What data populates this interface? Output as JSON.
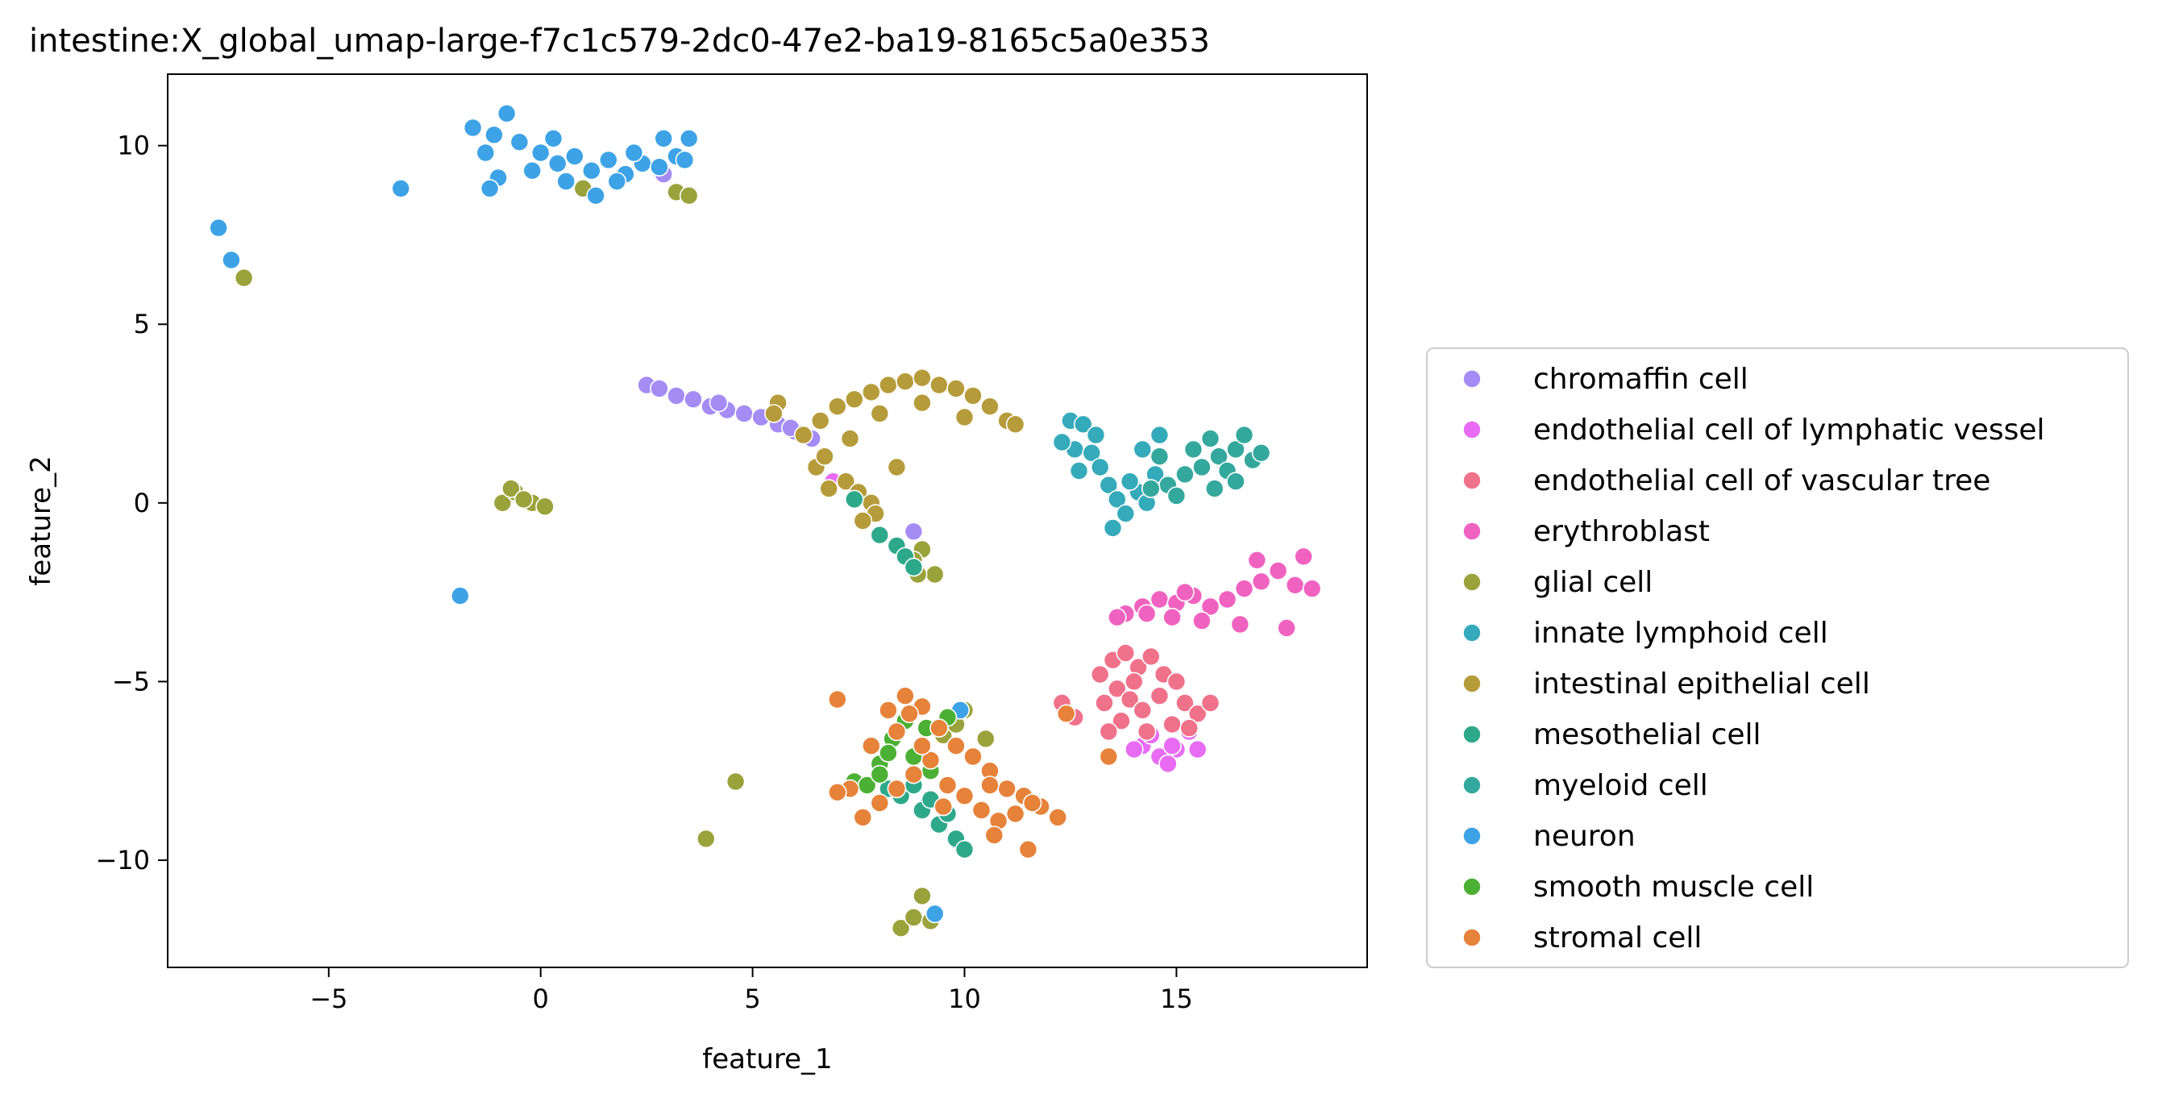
{
  "chart_data": {
    "type": "scatter",
    "title": "intestine:X_global_umap-large-f7c1c579-2dc0-47e2-ba19-8165c5a0e353",
    "xlabel": "feature_1",
    "ylabel": "feature_2",
    "xlim": [
      -8.8,
      19.5
    ],
    "ylim": [
      -13.0,
      12.0
    ],
    "xticks": [
      -5,
      0,
      5,
      10,
      15
    ],
    "xtick_labels": [
      "−5",
      "0",
      "5",
      "10",
      "15"
    ],
    "yticks": [
      -10,
      -5,
      0,
      5,
      10
    ],
    "ytick_labels": [
      "−10",
      "−5",
      "0",
      "5",
      "10"
    ],
    "grid": false,
    "legend_position": "outside-right",
    "series": [
      {
        "name": "chromaffin cell",
        "color": "#a48cf4",
        "points": [
          [
            2.5,
            3.3
          ],
          [
            2.8,
            3.2
          ],
          [
            3.2,
            3.0
          ],
          [
            3.6,
            2.9
          ],
          [
            4.0,
            2.7
          ],
          [
            4.4,
            2.6
          ],
          [
            4.8,
            2.5
          ],
          [
            5.2,
            2.4
          ],
          [
            5.6,
            2.2
          ],
          [
            6.0,
            2.0
          ],
          [
            6.4,
            1.8
          ],
          [
            8.8,
            -0.8
          ],
          [
            2.9,
            9.2
          ],
          [
            5.9,
            2.1
          ],
          [
            4.2,
            2.8
          ]
        ]
      },
      {
        "name": "endothelial cell of lymphatic vessel",
        "color": "#e76cf3",
        "points": [
          [
            14.2,
            -6.8
          ],
          [
            14.6,
            -7.1
          ],
          [
            15.0,
            -6.9
          ],
          [
            14.8,
            -7.3
          ],
          [
            14.4,
            -6.5
          ],
          [
            15.3,
            -6.4
          ],
          [
            14.0,
            -6.9
          ],
          [
            6.9,
            0.6
          ],
          [
            14.9,
            -6.8
          ],
          [
            15.5,
            -6.9
          ]
        ]
      },
      {
        "name": "endothelial cell of vascular tree",
        "color": "#f0718a",
        "points": [
          [
            13.5,
            -4.4
          ],
          [
            13.8,
            -4.2
          ],
          [
            14.1,
            -4.6
          ],
          [
            14.4,
            -4.3
          ],
          [
            14.7,
            -4.8
          ],
          [
            15.0,
            -5.0
          ],
          [
            13.6,
            -5.2
          ],
          [
            13.9,
            -5.5
          ],
          [
            14.2,
            -5.8
          ],
          [
            14.6,
            -5.4
          ],
          [
            15.2,
            -5.6
          ],
          [
            15.5,
            -5.9
          ],
          [
            13.7,
            -6.1
          ],
          [
            14.3,
            -6.4
          ],
          [
            14.9,
            -6.2
          ],
          [
            13.3,
            -5.6
          ],
          [
            12.3,
            -5.6
          ],
          [
            12.6,
            -6.0
          ],
          [
            13.2,
            -4.8
          ],
          [
            15.8,
            -5.6
          ],
          [
            15.3,
            -6.3
          ],
          [
            14.0,
            -5.0
          ],
          [
            13.4,
            -6.4
          ]
        ]
      },
      {
        "name": "erythroblast",
        "color": "#f062c0",
        "points": [
          [
            13.8,
            -3.1
          ],
          [
            14.2,
            -2.9
          ],
          [
            14.6,
            -2.7
          ],
          [
            15.0,
            -2.8
          ],
          [
            15.4,
            -2.6
          ],
          [
            15.8,
            -2.9
          ],
          [
            16.2,
            -2.7
          ],
          [
            16.6,
            -2.4
          ],
          [
            17.0,
            -2.2
          ],
          [
            17.4,
            -1.9
          ],
          [
            17.8,
            -2.3
          ],
          [
            18.2,
            -2.4
          ],
          [
            18.0,
            -1.5
          ],
          [
            17.6,
            -3.5
          ],
          [
            16.9,
            -1.6
          ],
          [
            16.5,
            -3.4
          ],
          [
            15.6,
            -3.3
          ],
          [
            14.9,
            -3.2
          ],
          [
            14.3,
            -3.1
          ],
          [
            13.6,
            -3.2
          ],
          [
            15.2,
            -2.5
          ]
        ]
      },
      {
        "name": "glial cell",
        "color": "#9aa23b",
        "points": [
          [
            -7.0,
            6.3
          ],
          [
            -0.9,
            0.0
          ],
          [
            -0.6,
            0.3
          ],
          [
            -0.7,
            0.4
          ],
          [
            -0.2,
            0.0
          ],
          [
            0.1,
            -0.1
          ],
          [
            -0.4,
            0.1
          ],
          [
            1.0,
            8.8
          ],
          [
            3.2,
            8.7
          ],
          [
            3.5,
            8.6
          ],
          [
            4.6,
            -7.8
          ],
          [
            3.9,
            -9.4
          ],
          [
            9.0,
            -1.3
          ],
          [
            8.8,
            -1.6
          ],
          [
            9.3,
            -2.0
          ],
          [
            8.9,
            -2.0
          ],
          [
            9.0,
            -11.0
          ],
          [
            8.5,
            -11.9
          ],
          [
            8.8,
            -11.6
          ],
          [
            9.2,
            -11.7
          ],
          [
            10.0,
            -5.8
          ],
          [
            9.5,
            -6.5
          ],
          [
            10.5,
            -6.6
          ],
          [
            9.8,
            -6.2
          ]
        ]
      },
      {
        "name": "innate lymphoid cell",
        "color": "#35aabb",
        "points": [
          [
            12.5,
            2.3
          ],
          [
            12.8,
            2.2
          ],
          [
            12.6,
            1.5
          ],
          [
            13.0,
            1.4
          ],
          [
            13.2,
            1.0
          ],
          [
            13.4,
            0.5
          ],
          [
            13.6,
            0.1
          ],
          [
            13.8,
            -0.3
          ],
          [
            14.1,
            0.3
          ],
          [
            14.5,
            0.8
          ],
          [
            14.2,
            1.5
          ],
          [
            14.6,
            1.9
          ],
          [
            12.3,
            1.7
          ],
          [
            13.5,
            -0.7
          ],
          [
            13.9,
            0.6
          ],
          [
            14.3,
            0.0
          ],
          [
            12.7,
            0.9
          ],
          [
            13.1,
            1.9
          ]
        ]
      },
      {
        "name": "intestinal epithelial cell",
        "color": "#b69b3a",
        "points": [
          [
            5.6,
            2.8
          ],
          [
            5.5,
            2.5
          ],
          [
            6.2,
            1.9
          ],
          [
            6.6,
            2.3
          ],
          [
            7.0,
            2.7
          ],
          [
            7.4,
            2.9
          ],
          [
            7.8,
            3.1
          ],
          [
            8.2,
            3.3
          ],
          [
            8.6,
            3.4
          ],
          [
            9.0,
            3.5
          ],
          [
            9.4,
            3.3
          ],
          [
            9.8,
            3.2
          ],
          [
            10.2,
            3.0
          ],
          [
            10.6,
            2.7
          ],
          [
            11.0,
            2.3
          ],
          [
            11.2,
            2.2
          ],
          [
            6.5,
            1.0
          ],
          [
            6.7,
            1.3
          ],
          [
            7.2,
            0.6
          ],
          [
            7.5,
            0.3
          ],
          [
            7.8,
            0.0
          ],
          [
            7.9,
            -0.3
          ],
          [
            7.6,
            -0.5
          ],
          [
            8.4,
            1.0
          ],
          [
            7.3,
            1.8
          ],
          [
            8.0,
            2.5
          ],
          [
            9.0,
            2.8
          ],
          [
            10.0,
            2.4
          ],
          [
            6.8,
            0.4
          ]
        ]
      },
      {
        "name": "mesothelial cell",
        "color": "#2ea88a",
        "points": [
          [
            7.4,
            0.1
          ],
          [
            8.0,
            -0.9
          ],
          [
            8.4,
            -1.2
          ],
          [
            8.6,
            -1.5
          ],
          [
            8.8,
            -1.8
          ],
          [
            8.5,
            -8.2
          ],
          [
            9.0,
            -8.6
          ],
          [
            9.4,
            -9.0
          ],
          [
            9.8,
            -9.4
          ],
          [
            10.0,
            -9.7
          ],
          [
            9.2,
            -8.3
          ],
          [
            8.8,
            -7.9
          ],
          [
            9.6,
            -8.7
          ],
          [
            8.2,
            -8.0
          ]
        ]
      },
      {
        "name": "myeloid cell",
        "color": "#35a89e",
        "points": [
          [
            14.8,
            0.5
          ],
          [
            15.2,
            0.8
          ],
          [
            15.6,
            1.0
          ],
          [
            16.0,
            1.3
          ],
          [
            16.4,
            1.5
          ],
          [
            16.8,
            1.2
          ],
          [
            17.0,
            1.4
          ],
          [
            15.4,
            1.5
          ],
          [
            15.8,
            1.8
          ],
          [
            16.2,
            0.9
          ],
          [
            14.6,
            1.3
          ],
          [
            15.0,
            0.2
          ],
          [
            15.9,
            0.4
          ],
          [
            16.6,
            1.9
          ],
          [
            14.4,
            0.4
          ],
          [
            16.4,
            0.6
          ]
        ]
      },
      {
        "name": "neuron",
        "color": "#3da2e6",
        "points": [
          [
            -7.6,
            7.7
          ],
          [
            -7.3,
            6.8
          ],
          [
            -3.3,
            8.8
          ],
          [
            -1.9,
            -2.6
          ],
          [
            -1.6,
            10.5
          ],
          [
            -1.1,
            10.3
          ],
          [
            -0.8,
            10.9
          ],
          [
            -1.3,
            9.8
          ],
          [
            -1.0,
            9.1
          ],
          [
            -0.5,
            10.1
          ],
          [
            0.0,
            9.8
          ],
          [
            0.4,
            9.5
          ],
          [
            0.8,
            9.7
          ],
          [
            1.2,
            9.3
          ],
          [
            1.6,
            9.6
          ],
          [
            2.0,
            9.2
          ],
          [
            2.4,
            9.5
          ],
          [
            2.8,
            9.4
          ],
          [
            3.2,
            9.7
          ],
          [
            3.5,
            10.2
          ],
          [
            1.3,
            8.6
          ],
          [
            0.3,
            10.2
          ],
          [
            2.9,
            10.2
          ],
          [
            -0.2,
            9.3
          ],
          [
            0.6,
            9.0
          ],
          [
            3.4,
            9.6
          ],
          [
            -1.2,
            8.8
          ],
          [
            9.9,
            -5.8
          ],
          [
            9.3,
            -11.5
          ],
          [
            2.2,
            9.8
          ],
          [
            1.8,
            9.0
          ]
        ]
      },
      {
        "name": "smooth muscle cell",
        "color": "#4cb035",
        "points": [
          [
            7.4,
            -7.8
          ],
          [
            7.7,
            -7.9
          ],
          [
            8.0,
            -7.3
          ],
          [
            8.3,
            -6.6
          ],
          [
            8.8,
            -7.1
          ],
          [
            9.2,
            -7.5
          ],
          [
            9.6,
            -6.0
          ],
          [
            8.6,
            -6.1
          ],
          [
            9.1,
            -6.3
          ],
          [
            8.2,
            -7.0
          ],
          [
            8.0,
            -7.6
          ]
        ]
      },
      {
        "name": "stromal cell",
        "color": "#e6823a",
        "points": [
          [
            7.0,
            -5.5
          ],
          [
            7.8,
            -6.8
          ],
          [
            8.2,
            -5.8
          ],
          [
            8.6,
            -5.4
          ],
          [
            9.0,
            -5.7
          ],
          [
            9.4,
            -6.3
          ],
          [
            9.8,
            -6.8
          ],
          [
            10.2,
            -7.1
          ],
          [
            10.6,
            -7.5
          ],
          [
            11.0,
            -8.0
          ],
          [
            11.4,
            -8.2
          ],
          [
            11.8,
            -8.5
          ],
          [
            12.2,
            -8.8
          ],
          [
            7.3,
            -8.0
          ],
          [
            7.6,
            -8.8
          ],
          [
            8.0,
            -8.4
          ],
          [
            8.4,
            -8.0
          ],
          [
            8.8,
            -7.6
          ],
          [
            9.2,
            -7.2
          ],
          [
            9.6,
            -7.9
          ],
          [
            10.0,
            -8.2
          ],
          [
            10.4,
            -8.6
          ],
          [
            10.8,
            -8.9
          ],
          [
            11.2,
            -8.7
          ],
          [
            11.5,
            -9.7
          ],
          [
            10.7,
            -9.3
          ],
          [
            7.0,
            -8.1
          ],
          [
            12.4,
            -5.9
          ],
          [
            13.4,
            -7.1
          ],
          [
            8.4,
            -6.4
          ],
          [
            9.0,
            -6.8
          ],
          [
            10.6,
            -7.9
          ],
          [
            9.5,
            -8.5
          ],
          [
            8.7,
            -5.9
          ],
          [
            11.6,
            -8.4
          ]
        ]
      }
    ]
  }
}
